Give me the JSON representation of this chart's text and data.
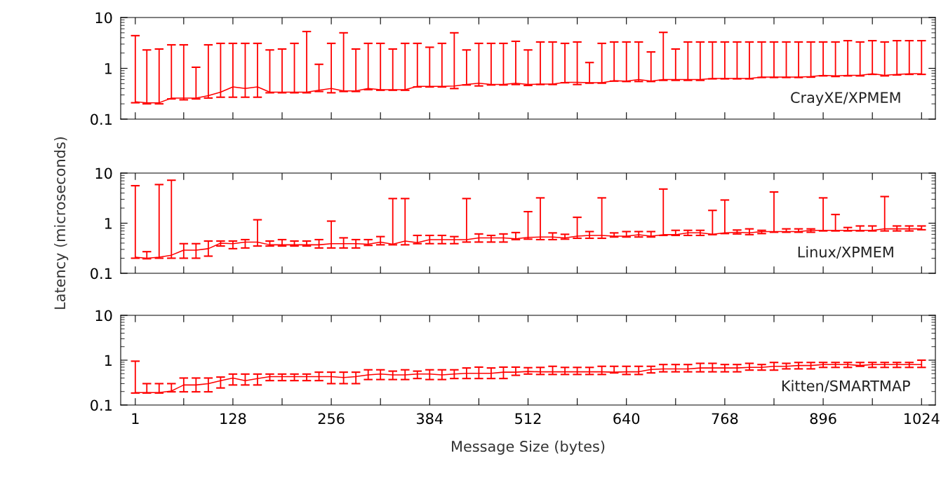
{
  "chart_data": [
    {
      "type": "line",
      "x": [
        1,
        16,
        32,
        48,
        64,
        80,
        96,
        112,
        128,
        144,
        160,
        176,
        192,
        208,
        224,
        240,
        256,
        272,
        288,
        304,
        320,
        336,
        352,
        368,
        384,
        400,
        416,
        432,
        448,
        464,
        480,
        496,
        512,
        528,
        544,
        560,
        576,
        592,
        608,
        624,
        640,
        656,
        672,
        688,
        704,
        720,
        736,
        752,
        768,
        784,
        800,
        816,
        832,
        848,
        864,
        880,
        896,
        912,
        928,
        944,
        960,
        976,
        992,
        1008,
        1024
      ],
      "series": [
        {
          "name": "CrayXE/XPMEM",
          "color": "#ff0000",
          "values": [
            0.22,
            0.21,
            0.21,
            0.26,
            0.26,
            0.26,
            0.29,
            0.34,
            0.43,
            0.4,
            0.43,
            0.34,
            0.34,
            0.34,
            0.34,
            0.37,
            0.4,
            0.36,
            0.36,
            0.4,
            0.38,
            0.38,
            0.38,
            0.44,
            0.44,
            0.44,
            0.45,
            0.48,
            0.51,
            0.48,
            0.48,
            0.51,
            0.48,
            0.49,
            0.49,
            0.53,
            0.53,
            0.52,
            0.52,
            0.57,
            0.56,
            0.6,
            0.56,
            0.6,
            0.6,
            0.6,
            0.6,
            0.63,
            0.63,
            0.63,
            0.63,
            0.67,
            0.67,
            0.67,
            0.67,
            0.69,
            0.73,
            0.71,
            0.73,
            0.73,
            0.78,
            0.73,
            0.76,
            0.78,
            0.78
          ],
          "errors": [
            [
              0.21,
              4.4
            ],
            [
              0.2,
              2.3
            ],
            [
              0.2,
              2.4
            ],
            [
              0.25,
              2.9
            ],
            [
              0.24,
              2.9
            ],
            [
              0.25,
              1.05
            ],
            [
              0.26,
              2.9
            ],
            [
              0.27,
              3.1
            ],
            [
              0.27,
              3.1
            ],
            [
              0.27,
              3.1
            ],
            [
              0.27,
              3.1
            ],
            [
              0.33,
              2.3
            ],
            [
              0.33,
              2.4
            ],
            [
              0.33,
              3.1
            ],
            [
              0.33,
              5.3
            ],
            [
              0.35,
              1.2
            ],
            [
              0.33,
              3.1
            ],
            [
              0.35,
              5.0
            ],
            [
              0.35,
              2.4
            ],
            [
              0.38,
              3.1
            ],
            [
              0.37,
              3.1
            ],
            [
              0.37,
              2.4
            ],
            [
              0.37,
              3.1
            ],
            [
              0.43,
              3.1
            ],
            [
              0.43,
              2.6
            ],
            [
              0.43,
              3.1
            ],
            [
              0.4,
              5.0
            ],
            [
              0.47,
              2.3
            ],
            [
              0.45,
              3.1
            ],
            [
              0.47,
              3.1
            ],
            [
              0.47,
              3.1
            ],
            [
              0.48,
              3.4
            ],
            [
              0.46,
              2.3
            ],
            [
              0.48,
              3.3
            ],
            [
              0.48,
              3.3
            ],
            [
              0.52,
              3.1
            ],
            [
              0.48,
              3.3
            ],
            [
              0.51,
              1.3
            ],
            [
              0.51,
              3.1
            ],
            [
              0.56,
              3.3
            ],
            [
              0.55,
              3.3
            ],
            [
              0.55,
              3.3
            ],
            [
              0.55,
              2.1
            ],
            [
              0.58,
              5.1
            ],
            [
              0.58,
              2.4
            ],
            [
              0.58,
              3.3
            ],
            [
              0.58,
              3.3
            ],
            [
              0.62,
              3.3
            ],
            [
              0.62,
              3.3
            ],
            [
              0.62,
              3.3
            ],
            [
              0.62,
              3.3
            ],
            [
              0.66,
              3.3
            ],
            [
              0.66,
              3.3
            ],
            [
              0.66,
              3.3
            ],
            [
              0.66,
              3.3
            ],
            [
              0.67,
              3.3
            ],
            [
              0.71,
              3.3
            ],
            [
              0.69,
              3.3
            ],
            [
              0.71,
              3.5
            ],
            [
              0.71,
              3.3
            ],
            [
              0.76,
              3.5
            ],
            [
              0.71,
              3.3
            ],
            [
              0.74,
              3.5
            ],
            [
              0.76,
              3.5
            ],
            [
              0.76,
              3.5
            ]
          ]
        }
      ],
      "xlim": [
        -18,
        1042
      ],
      "xticks": [
        {
          "value": 1,
          "label": null
        },
        {
          "value": 64,
          "label": null
        },
        {
          "value": 128,
          "label": null
        },
        {
          "value": 192,
          "label": null
        },
        {
          "value": 256,
          "label": null
        },
        {
          "value": 320,
          "label": null
        },
        {
          "value": 384,
          "label": null
        },
        {
          "value": 448,
          "label": null
        },
        {
          "value": 512,
          "label": null
        },
        {
          "value": 576,
          "label": null
        },
        {
          "value": 640,
          "label": null
        },
        {
          "value": 704,
          "label": null
        },
        {
          "value": 768,
          "label": null
        },
        {
          "value": 832,
          "label": null
        },
        {
          "value": 896,
          "label": null
        },
        {
          "value": 960,
          "label": null
        },
        {
          "value": 1024,
          "label": null
        }
      ],
      "ylim": [
        0.1,
        10
      ],
      "yticks": [
        0.1,
        1,
        10
      ],
      "log": true,
      "tick_labels": "y",
      "line_style": "solid",
      "marker": "none",
      "grid": false,
      "legend": false
    },
    {
      "type": "line",
      "x": [
        1,
        16,
        32,
        48,
        64,
        80,
        96,
        112,
        128,
        144,
        160,
        176,
        192,
        208,
        224,
        240,
        256,
        272,
        288,
        304,
        320,
        336,
        352,
        368,
        384,
        400,
        416,
        432,
        448,
        464,
        480,
        496,
        512,
        528,
        544,
        560,
        576,
        592,
        608,
        624,
        640,
        656,
        672,
        688,
        704,
        720,
        736,
        752,
        768,
        784,
        800,
        816,
        832,
        848,
        864,
        880,
        896,
        912,
        928,
        944,
        960,
        976,
        992,
        1008,
        1024
      ],
      "series": [
        {
          "name": "Linux/XPMEM",
          "color": "#ff0000",
          "values": [
            0.21,
            0.2,
            0.21,
            0.23,
            0.29,
            0.29,
            0.31,
            0.4,
            0.39,
            0.42,
            0.42,
            0.37,
            0.37,
            0.37,
            0.37,
            0.37,
            0.39,
            0.39,
            0.39,
            0.38,
            0.42,
            0.38,
            0.44,
            0.41,
            0.47,
            0.47,
            0.47,
            0.47,
            0.51,
            0.51,
            0.51,
            0.49,
            0.52,
            0.53,
            0.53,
            0.51,
            0.55,
            0.57,
            0.57,
            0.55,
            0.55,
            0.59,
            0.55,
            0.59,
            0.59,
            0.64,
            0.64,
            0.6,
            0.64,
            0.66,
            0.64,
            0.68,
            0.68,
            0.68,
            0.68,
            0.72,
            0.72,
            0.72,
            0.72,
            0.72,
            0.72,
            0.77,
            0.77,
            0.77,
            0.77
          ],
          "errors": [
            [
              0.2,
              5.6
            ],
            [
              0.195,
              0.27
            ],
            [
              0.2,
              5.9
            ],
            [
              0.2,
              7.2
            ],
            [
              0.2,
              0.39
            ],
            [
              0.2,
              0.39
            ],
            [
              0.22,
              0.44
            ],
            [
              0.35,
              0.44
            ],
            [
              0.31,
              0.44
            ],
            [
              0.32,
              0.47
            ],
            [
              0.35,
              1.17
            ],
            [
              0.35,
              0.44
            ],
            [
              0.35,
              0.47
            ],
            [
              0.35,
              0.44
            ],
            [
              0.35,
              0.44
            ],
            [
              0.32,
              0.47
            ],
            [
              0.32,
              1.1
            ],
            [
              0.32,
              0.51
            ],
            [
              0.32,
              0.47
            ],
            [
              0.36,
              0.47
            ],
            [
              0.37,
              0.54
            ],
            [
              0.37,
              3.1
            ],
            [
              0.37,
              3.1
            ],
            [
              0.39,
              0.57
            ],
            [
              0.39,
              0.57
            ],
            [
              0.39,
              0.57
            ],
            [
              0.39,
              0.54
            ],
            [
              0.42,
              3.1
            ],
            [
              0.42,
              0.61
            ],
            [
              0.42,
              0.57
            ],
            [
              0.42,
              0.61
            ],
            [
              0.47,
              0.65
            ],
            [
              0.48,
              1.7
            ],
            [
              0.47,
              3.2
            ],
            [
              0.47,
              0.64
            ],
            [
              0.48,
              0.6
            ],
            [
              0.5,
              1.31
            ],
            [
              0.5,
              0.68
            ],
            [
              0.5,
              3.2
            ],
            [
              0.53,
              0.64
            ],
            [
              0.53,
              0.68
            ],
            [
              0.53,
              0.68
            ],
            [
              0.53,
              0.68
            ],
            [
              0.57,
              4.8
            ],
            [
              0.57,
              0.72
            ],
            [
              0.57,
              0.72
            ],
            [
              0.57,
              0.72
            ],
            [
              0.59,
              1.8
            ],
            [
              0.62,
              2.9
            ],
            [
              0.61,
              0.73
            ],
            [
              0.59,
              0.77
            ],
            [
              0.62,
              0.72
            ],
            [
              0.66,
              4.2
            ],
            [
              0.66,
              0.77
            ],
            [
              0.66,
              0.77
            ],
            [
              0.66,
              0.77
            ],
            [
              0.7,
              3.2
            ],
            [
              0.7,
              1.49
            ],
            [
              0.7,
              0.82
            ],
            [
              0.7,
              0.88
            ],
            [
              0.7,
              0.88
            ],
            [
              0.7,
              3.4
            ],
            [
              0.7,
              0.88
            ],
            [
              0.7,
              0.88
            ],
            [
              0.74,
              0.88
            ]
          ]
        }
      ],
      "ylabel": "Latency (microseconds)",
      "xlim": [
        -18,
        1042
      ],
      "xticks": [
        {
          "value": 1,
          "label": null
        },
        {
          "value": 64,
          "label": null
        },
        {
          "value": 128,
          "label": null
        },
        {
          "value": 192,
          "label": null
        },
        {
          "value": 256,
          "label": null
        },
        {
          "value": 320,
          "label": null
        },
        {
          "value": 384,
          "label": null
        },
        {
          "value": 448,
          "label": null
        },
        {
          "value": 512,
          "label": null
        },
        {
          "value": 576,
          "label": null
        },
        {
          "value": 640,
          "label": null
        },
        {
          "value": 704,
          "label": null
        },
        {
          "value": 768,
          "label": null
        },
        {
          "value": 832,
          "label": null
        },
        {
          "value": 896,
          "label": null
        },
        {
          "value": 960,
          "label": null
        },
        {
          "value": 1024,
          "label": null
        }
      ],
      "ylim": [
        0.1,
        10
      ],
      "yticks": [
        0.1,
        1,
        10
      ],
      "log": true,
      "tick_labels": "y",
      "line_style": "solid",
      "marker": "none",
      "grid": false,
      "legend": false
    },
    {
      "type": "line",
      "x": [
        1,
        16,
        32,
        48,
        64,
        80,
        96,
        112,
        128,
        144,
        160,
        176,
        192,
        208,
        224,
        240,
        256,
        272,
        288,
        304,
        320,
        336,
        352,
        368,
        384,
        400,
        416,
        432,
        448,
        464,
        480,
        496,
        512,
        528,
        544,
        560,
        576,
        592,
        608,
        624,
        640,
        656,
        672,
        688,
        704,
        720,
        736,
        752,
        768,
        784,
        800,
        816,
        832,
        848,
        864,
        880,
        896,
        912,
        928,
        944,
        960,
        976,
        992,
        1008,
        1024
      ],
      "series": [
        {
          "name": "Kitten/SMARTMAP",
          "color": "#ff0000",
          "values": [
            0.19,
            0.19,
            0.19,
            0.205,
            0.28,
            0.28,
            0.3,
            0.35,
            0.4,
            0.35,
            0.39,
            0.43,
            0.43,
            0.43,
            0.43,
            0.43,
            0.43,
            0.41,
            0.43,
            0.47,
            0.49,
            0.47,
            0.47,
            0.49,
            0.49,
            0.47,
            0.49,
            0.51,
            0.51,
            0.51,
            0.54,
            0.54,
            0.56,
            0.55,
            0.55,
            0.55,
            0.55,
            0.55,
            0.55,
            0.54,
            0.55,
            0.55,
            0.62,
            0.64,
            0.64,
            0.64,
            0.67,
            0.67,
            0.67,
            0.67,
            0.69,
            0.69,
            0.73,
            0.73,
            0.76,
            0.76,
            0.8,
            0.8,
            0.8,
            0.76,
            0.8,
            0.8,
            0.8,
            0.8,
            0.8
          ],
          "errors": [
            [
              0.185,
              0.95
            ],
            [
              0.185,
              0.3
            ],
            [
              0.185,
              0.3
            ],
            [
              0.197,
              0.3
            ],
            [
              0.197,
              0.4
            ],
            [
              0.197,
              0.4
            ],
            [
              0.197,
              0.4
            ],
            [
              0.24,
              0.42
            ],
            [
              0.28,
              0.49
            ],
            [
              0.28,
              0.49
            ],
            [
              0.28,
              0.49
            ],
            [
              0.35,
              0.49
            ],
            [
              0.35,
              0.49
            ],
            [
              0.35,
              0.49
            ],
            [
              0.35,
              0.49
            ],
            [
              0.35,
              0.54
            ],
            [
              0.3,
              0.54
            ],
            [
              0.3,
              0.54
            ],
            [
              0.3,
              0.54
            ],
            [
              0.37,
              0.61
            ],
            [
              0.37,
              0.61
            ],
            [
              0.37,
              0.57
            ],
            [
              0.37,
              0.61
            ],
            [
              0.39,
              0.57
            ],
            [
              0.37,
              0.61
            ],
            [
              0.37,
              0.61
            ],
            [
              0.39,
              0.61
            ],
            [
              0.39,
              0.67
            ],
            [
              0.39,
              0.7
            ],
            [
              0.39,
              0.67
            ],
            [
              0.39,
              0.7
            ],
            [
              0.46,
              0.7
            ],
            [
              0.49,
              0.68
            ],
            [
              0.48,
              0.69
            ],
            [
              0.48,
              0.73
            ],
            [
              0.48,
              0.69
            ],
            [
              0.48,
              0.69
            ],
            [
              0.48,
              0.69
            ],
            [
              0.48,
              0.73
            ],
            [
              0.52,
              0.73
            ],
            [
              0.48,
              0.73
            ],
            [
              0.48,
              0.73
            ],
            [
              0.52,
              0.73
            ],
            [
              0.55,
              0.8
            ],
            [
              0.55,
              0.8
            ],
            [
              0.55,
              0.8
            ],
            [
              0.55,
              0.85
            ],
            [
              0.55,
              0.85
            ],
            [
              0.55,
              0.8
            ],
            [
              0.55,
              0.8
            ],
            [
              0.6,
              0.85
            ],
            [
              0.6,
              0.8
            ],
            [
              0.6,
              0.89
            ],
            [
              0.64,
              0.85
            ],
            [
              0.64,
              0.89
            ],
            [
              0.64,
              0.89
            ],
            [
              0.69,
              0.89
            ],
            [
              0.69,
              0.89
            ],
            [
              0.69,
              0.89
            ],
            [
              0.73,
              0.89
            ],
            [
              0.69,
              0.89
            ],
            [
              0.69,
              0.89
            ],
            [
              0.69,
              0.89
            ],
            [
              0.69,
              0.89
            ],
            [
              0.69,
              1.0
            ]
          ]
        }
      ],
      "xlabel": "Message Size (bytes)",
      "xlim": [
        -18,
        1042
      ],
      "xticks": [
        1,
        {
          "value": 64,
          "label": null
        },
        128,
        {
          "value": 192,
          "label": null
        },
        256,
        {
          "value": 320,
          "label": null
        },
        384,
        {
          "value": 448,
          "label": null
        },
        512,
        {
          "value": 576,
          "label": null
        },
        640,
        {
          "value": 704,
          "label": null
        },
        768,
        {
          "value": 832,
          "label": null
        },
        896,
        {
          "value": 960,
          "label": null
        },
        1024
      ],
      "ylim": [
        0.1,
        10
      ],
      "yticks": [
        0.1,
        1,
        10
      ],
      "log": true,
      "line_style": "solid",
      "marker": "none",
      "grid": false,
      "legend": false
    }
  ]
}
